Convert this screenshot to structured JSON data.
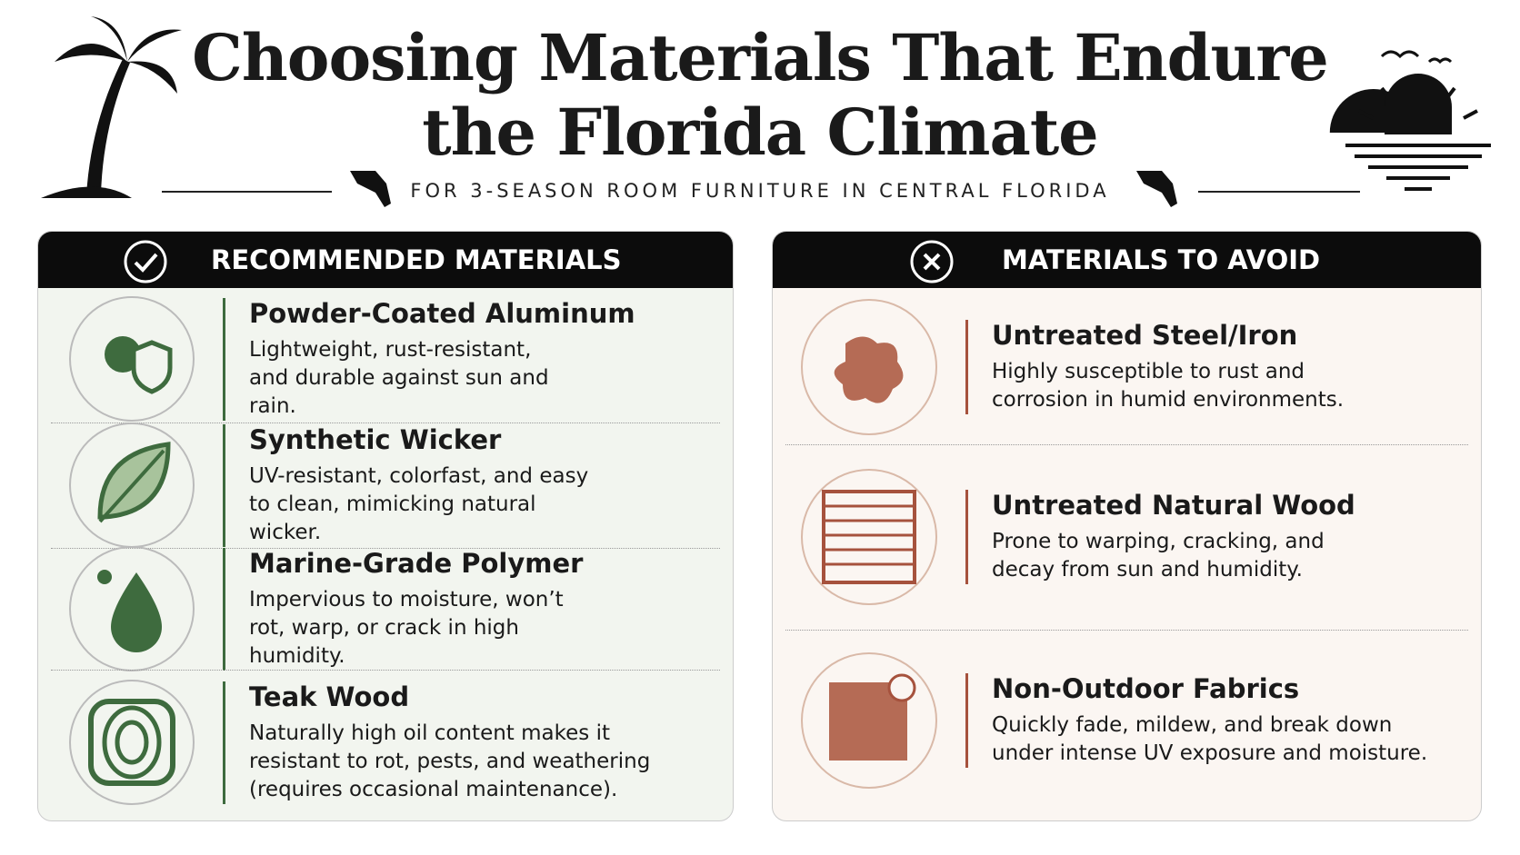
{
  "header": {
    "title_lines": [
      "Choosing Materials That Endure",
      "the Florida Climate"
    ],
    "subtitle": "FOR 3-SEASON ROOM FURNITURE IN CENTRAL FLORIDA"
  },
  "recommended": {
    "heading": "RECOMMENDED MATERIALS",
    "items": [
      {
        "name": "Powder-Coated Aluminum",
        "description": "Lightweight, rust-resistant, and durable against sun and rain."
      },
      {
        "name": "Synthetic Wicker",
        "description": "UV-resistant, colorfast, and easy to clean, mimicking natural wicker."
      },
      {
        "name": "Marine-Grade Polymer",
        "description": "Impervious to moisture, won’t rot, warp, or crack in high humidity."
      },
      {
        "name": "Teak Wood",
        "description": "Naturally high oil content makes it resistant to rot, pests, and weathering (requires occasional maintenance)."
      }
    ]
  },
  "avoid": {
    "heading": "MATERIALS TO AVOID",
    "items": [
      {
        "name": "Untreated Steel/Iron",
        "description": "Highly susceptible to rust and corrosion in humid environments."
      },
      {
        "name": "Untreated Natural Wood",
        "description": "Prone to warping, cracking, and decay from sun and humidity."
      },
      {
        "name": "Non-Outdoor Fabrics",
        "description": "Quickly fade, mildew, and break down under intense UV exposure and moisture."
      }
    ]
  }
}
